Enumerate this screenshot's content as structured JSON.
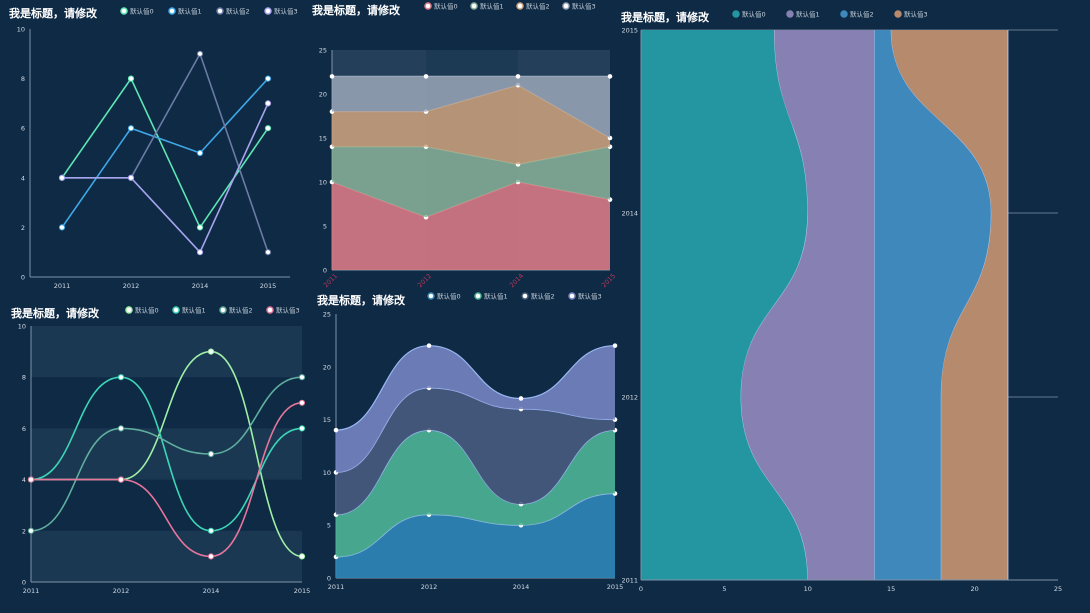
{
  "colors": {
    "background": "#0e2a45",
    "axis": "#7f93a8",
    "label": "#d5dde6"
  },
  "chart_data": [
    {
      "type": "line",
      "title": "我是标题，请修改",
      "categories": [
        "2011",
        "2012",
        "2014",
        "2015"
      ],
      "ylim": [
        0,
        10
      ],
      "yticks": [
        0,
        2,
        4,
        6,
        8,
        10
      ],
      "series": [
        {
          "name": "默认值0",
          "values": [
            4,
            8,
            2,
            6
          ],
          "color": "#5ee6b4"
        },
        {
          "name": "默认值1",
          "values": [
            2,
            6,
            5,
            8
          ],
          "color": "#3fa9e8"
        },
        {
          "name": "默认值2",
          "values": [
            4,
            4,
            9,
            1
          ],
          "color": "#6b7ba6"
        },
        {
          "name": "默认值3",
          "values": [
            4,
            4,
            1,
            7
          ],
          "color": "#a7a4ee"
        }
      ]
    },
    {
      "type": "area",
      "title": "我是标题，请修改",
      "categories": [
        "2011",
        "2012",
        "2014",
        "2015"
      ],
      "ylim": [
        0,
        25
      ],
      "yticks": [
        0,
        5,
        10,
        15,
        20,
        25
      ],
      "stacked": true,
      "grid_bands": true,
      "series": [
        {
          "name": "默认值0",
          "values": [
            10,
            6,
            10,
            8
          ],
          "color": "#e07b86"
        },
        {
          "name": "默认值1",
          "values": [
            4,
            8,
            2,
            6
          ],
          "color": "#8ab399"
        },
        {
          "name": "默认值2",
          "values": [
            4,
            4,
            9,
            1
          ],
          "color": "#cfa37e"
        },
        {
          "name": "默认值3",
          "values": [
            4,
            4,
            1,
            7
          ],
          "color": "#9aa7b8"
        }
      ]
    },
    {
      "type": "line",
      "title": "我是标题，请修改",
      "categories": [
        "2011",
        "2012",
        "2014",
        "2015"
      ],
      "ylim": [
        0,
        10
      ],
      "yticks": [
        0,
        2,
        4,
        6,
        8,
        10
      ],
      "smooth": true,
      "grid_bands": true,
      "series": [
        {
          "name": "默认值0",
          "values": [
            4,
            4,
            9,
            1
          ],
          "color": "#9ff0a6"
        },
        {
          "name": "默认值1",
          "values": [
            4,
            8,
            2,
            6
          ],
          "color": "#3cd6b6"
        },
        {
          "name": "默认值2",
          "values": [
            2,
            6,
            5,
            8
          ],
          "color": "#5fae9e"
        },
        {
          "name": "默认值3",
          "values": [
            4,
            4,
            1,
            7
          ],
          "color": "#e6769b"
        }
      ]
    },
    {
      "type": "area",
      "title": "我是标题，请修改",
      "categories": [
        "2011",
        "2012",
        "2014",
        "2015"
      ],
      "ylim": [
        0,
        25
      ],
      "yticks": [
        0,
        5,
        10,
        15,
        20,
        25
      ],
      "stacked": true,
      "smooth": true,
      "series": [
        {
          "name": "默认值0",
          "values": [
            2,
            6,
            5,
            8
          ],
          "color": "#2f86b8"
        },
        {
          "name": "默认值1",
          "values": [
            4,
            8,
            2,
            6
          ],
          "color": "#4db496"
        },
        {
          "name": "默认值2",
          "values": [
            4,
            4,
            9,
            1
          ],
          "color": "#485b7e"
        },
        {
          "name": "默认值3",
          "values": [
            4,
            4,
            1,
            7
          ],
          "color": "#7684c2"
        }
      ]
    },
    {
      "type": "area",
      "title": "我是标题，请修改",
      "orientation": "horizontal",
      "categories": [
        "2011",
        "2012",
        "2014",
        "2015"
      ],
      "xlim": [
        0,
        25
      ],
      "xticks": [
        0,
        5,
        10,
        15,
        20,
        25
      ],
      "stacked": true,
      "smooth": true,
      "series": [
        {
          "name": "默认值0",
          "values": [
            10,
            6,
            10,
            8
          ],
          "color": "#2496a1"
        },
        {
          "name": "默认值1",
          "values": [
            4,
            8,
            4,
            6
          ],
          "color": "#8781b3"
        },
        {
          "name": "默认值2",
          "values": [
            4,
            4,
            7,
            1
          ],
          "color": "#3f88bc"
        },
        {
          "name": "默认值3",
          "values": [
            4,
            4,
            1,
            7
          ],
          "color": "#b68a6c"
        }
      ]
    }
  ]
}
